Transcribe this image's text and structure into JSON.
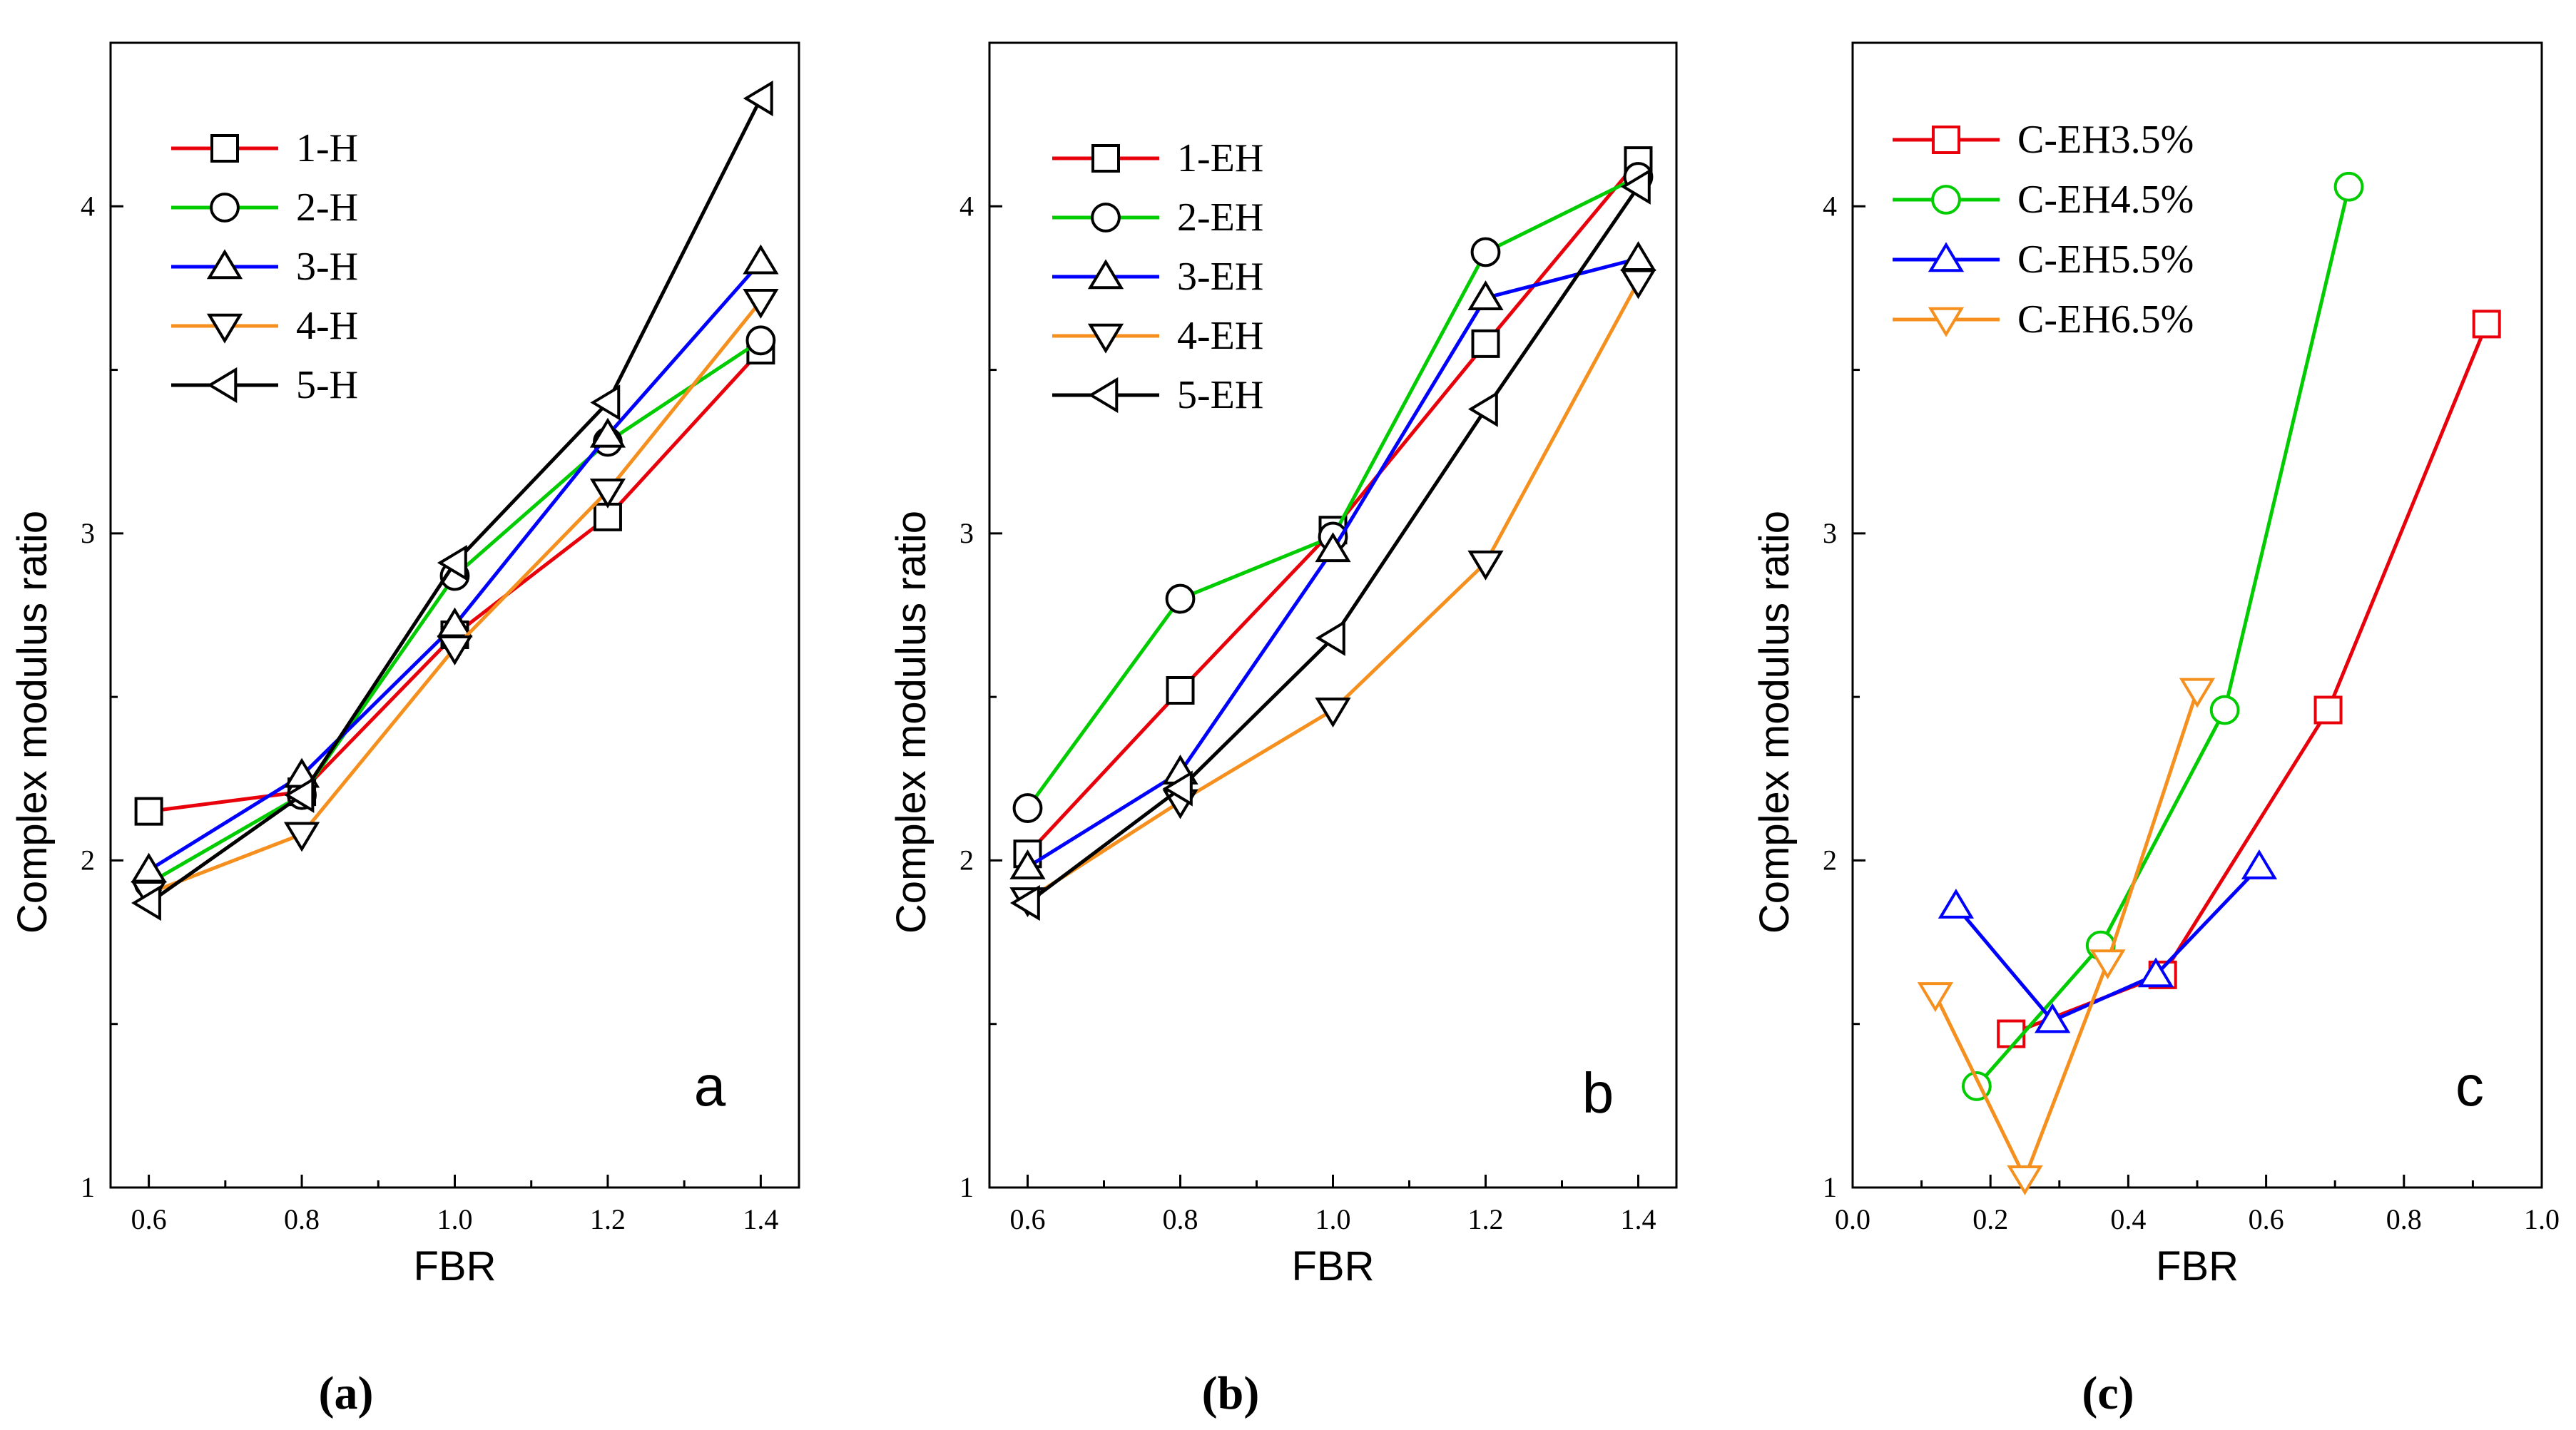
{
  "chart_data": [
    {
      "type": "line",
      "panel_letter": "a",
      "caption": "(a)",
      "xlabel": "FBR",
      "ylabel": "Complex modulus ratio",
      "xlim": [
        0.55,
        1.45
      ],
      "ylim": [
        1,
        4.5
      ],
      "xticks": [
        0.6,
        0.8,
        1.0,
        1.2,
        1.4
      ],
      "xtick_labels": [
        "0.6",
        "0.8",
        "1.0",
        "1.2",
        "1.4"
      ],
      "yticks": [
        1,
        2,
        3,
        4
      ],
      "ytick_labels": [
        "1",
        "2",
        "3",
        "4"
      ],
      "legend_position": "top-left",
      "series": [
        {
          "name": "1-H",
          "color": "#e8000b",
          "marker": "square",
          "x": [
            0.6,
            0.8,
            1.0,
            1.2,
            1.4
          ],
          "y": [
            2.15,
            2.21,
            2.69,
            3.05,
            3.56
          ]
        },
        {
          "name": "2-H",
          "color": "#00cc00",
          "marker": "circle",
          "x": [
            0.6,
            0.8,
            1.0,
            1.2,
            1.4
          ],
          "y": [
            1.93,
            2.2,
            2.87,
            3.28,
            3.59
          ]
        },
        {
          "name": "3-H",
          "color": "#0000ff",
          "marker": "triangle-up",
          "x": [
            0.6,
            0.8,
            1.0,
            1.2,
            1.4
          ],
          "y": [
            1.97,
            2.26,
            2.72,
            3.3,
            3.83
          ]
        },
        {
          "name": "4-H",
          "color": "#f5901e",
          "marker": "triangle-down",
          "x": [
            0.6,
            0.8,
            1.0,
            1.2,
            1.4
          ],
          "y": [
            1.9,
            2.08,
            2.65,
            3.13,
            3.71
          ]
        },
        {
          "name": "5-H",
          "color": "#000000",
          "marker": "triangle-left",
          "x": [
            0.6,
            0.8,
            1.0,
            1.2,
            1.4
          ],
          "y": [
            1.87,
            2.2,
            2.91,
            3.4,
            4.33
          ]
        }
      ]
    },
    {
      "type": "line",
      "panel_letter": "b",
      "caption": "(b)",
      "xlabel": "FBR",
      "ylabel": "Complex modulus ratio",
      "xlim": [
        0.55,
        1.45
      ],
      "ylim": [
        1,
        4.5
      ],
      "xticks": [
        0.6,
        0.8,
        1.0,
        1.2,
        1.4
      ],
      "xtick_labels": [
        "0.6",
        "0.8",
        "1.0",
        "1.2",
        "1.4"
      ],
      "yticks": [
        1,
        2,
        3,
        4
      ],
      "ytick_labels": [
        "1",
        "2",
        "3",
        "4"
      ],
      "legend_position": "top-left",
      "series": [
        {
          "name": "1-EH",
          "color": "#e8000b",
          "marker": "square",
          "x": [
            0.6,
            0.8,
            1.0,
            1.2,
            1.4
          ],
          "y": [
            2.02,
            2.52,
            3.01,
            3.58,
            4.14
          ]
        },
        {
          "name": "2-EH",
          "color": "#00cc00",
          "marker": "circle",
          "x": [
            0.6,
            0.8,
            1.0,
            1.2,
            1.4
          ],
          "y": [
            2.16,
            2.8,
            2.99,
            3.86,
            4.09
          ]
        },
        {
          "name": "3-EH",
          "color": "#0000ff",
          "marker": "triangle-up",
          "x": [
            0.6,
            0.8,
            1.0,
            1.2,
            1.4
          ],
          "y": [
            1.98,
            2.27,
            2.95,
            3.72,
            3.84
          ]
        },
        {
          "name": "4-EH",
          "color": "#f5901e",
          "marker": "triangle-down",
          "x": [
            0.6,
            0.8,
            1.0,
            1.2,
            1.4
          ],
          "y": [
            1.88,
            2.18,
            2.46,
            2.91,
            3.77
          ]
        },
        {
          "name": "5-EH",
          "color": "#000000",
          "marker": "triangle-left",
          "x": [
            0.6,
            0.8,
            1.0,
            1.2,
            1.4
          ],
          "y": [
            1.87,
            2.22,
            2.68,
            3.38,
            4.06
          ]
        }
      ]
    },
    {
      "type": "line",
      "panel_letter": "c",
      "caption": "(c)",
      "xlabel": "FBR",
      "ylabel": "Complex modulus ratio",
      "xlim": [
        0,
        1.0
      ],
      "ylim": [
        1,
        4.5
      ],
      "xticks": [
        0.0,
        0.2,
        0.4,
        0.6,
        0.8,
        1.0
      ],
      "xtick_labels": [
        "0.0",
        "0.2",
        "0.4",
        "0.6",
        "0.8",
        "1.0"
      ],
      "yticks": [
        1,
        2,
        3,
        4
      ],
      "ytick_labels": [
        "1",
        "2",
        "3",
        "4"
      ],
      "legend_position": "top-left",
      "series": [
        {
          "name": "C-EH3.5%",
          "color": "#e8000b",
          "marker": "square",
          "x": [
            0.23,
            0.45,
            0.69,
            0.92
          ],
          "y": [
            1.47,
            1.65,
            2.46,
            3.64
          ]
        },
        {
          "name": "C-EH4.5%",
          "color": "#00cc00",
          "marker": "circle",
          "x": [
            0.18,
            0.36,
            0.54,
            0.72
          ],
          "y": [
            1.31,
            1.74,
            2.46,
            4.06
          ]
        },
        {
          "name": "C-EH5.5%",
          "color": "#0000ff",
          "marker": "triangle-up",
          "x": [
            0.15,
            0.29,
            0.44,
            0.59
          ],
          "y": [
            1.86,
            1.51,
            1.65,
            1.98
          ]
        },
        {
          "name": "C-EH6.5%",
          "color": "#f5901e",
          "marker": "triangle-down",
          "x": [
            0.12,
            0.25,
            0.37,
            0.5
          ],
          "y": [
            1.59,
            1.03,
            1.69,
            2.52
          ]
        }
      ]
    }
  ]
}
